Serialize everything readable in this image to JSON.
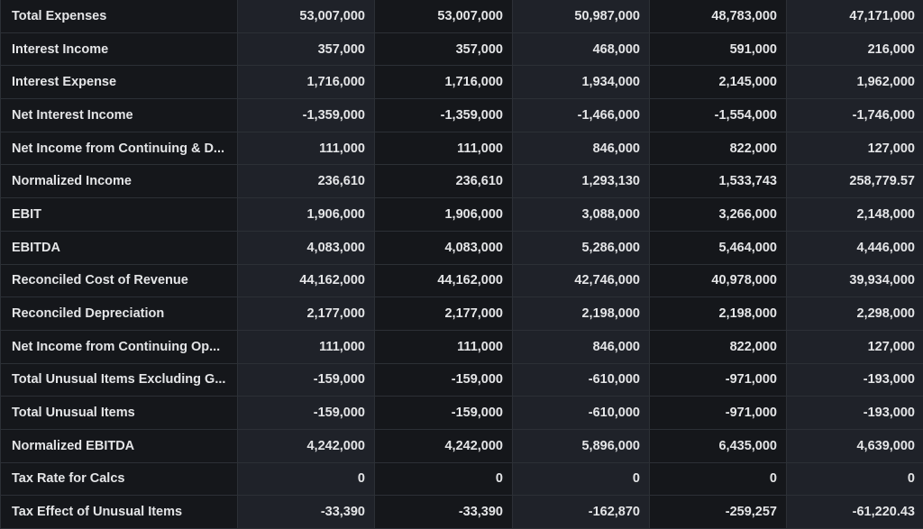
{
  "rows": [
    {
      "label": "Total Expenses",
      "values": [
        "53,007,000",
        "53,007,000",
        "50,987,000",
        "48,783,000",
        "47,171,000"
      ]
    },
    {
      "label": "Interest Income",
      "values": [
        "357,000",
        "357,000",
        "468,000",
        "591,000",
        "216,000"
      ]
    },
    {
      "label": "Interest Expense",
      "values": [
        "1,716,000",
        "1,716,000",
        "1,934,000",
        "2,145,000",
        "1,962,000"
      ]
    },
    {
      "label": "Net Interest Income",
      "values": [
        "-1,359,000",
        "-1,359,000",
        "-1,466,000",
        "-1,554,000",
        "-1,746,000"
      ]
    },
    {
      "label": "Net Income from Continuing & D...",
      "values": [
        "111,000",
        "111,000",
        "846,000",
        "822,000",
        "127,000"
      ]
    },
    {
      "label": "Normalized Income",
      "values": [
        "236,610",
        "236,610",
        "1,293,130",
        "1,533,743",
        "258,779.57"
      ]
    },
    {
      "label": "EBIT",
      "values": [
        "1,906,000",
        "1,906,000",
        "3,088,000",
        "3,266,000",
        "2,148,000"
      ]
    },
    {
      "label": "EBITDA",
      "values": [
        "4,083,000",
        "4,083,000",
        "5,286,000",
        "5,464,000",
        "4,446,000"
      ]
    },
    {
      "label": "Reconciled Cost of Revenue",
      "values": [
        "44,162,000",
        "44,162,000",
        "42,746,000",
        "40,978,000",
        "39,934,000"
      ]
    },
    {
      "label": "Reconciled Depreciation",
      "values": [
        "2,177,000",
        "2,177,000",
        "2,198,000",
        "2,198,000",
        "2,298,000"
      ]
    },
    {
      "label": "Net Income from Continuing Op...",
      "values": [
        "111,000",
        "111,000",
        "846,000",
        "822,000",
        "127,000"
      ]
    },
    {
      "label": "Total Unusual Items Excluding G...",
      "values": [
        "-159,000",
        "-159,000",
        "-610,000",
        "-971,000",
        "-193,000"
      ]
    },
    {
      "label": "Total Unusual Items",
      "values": [
        "-159,000",
        "-159,000",
        "-610,000",
        "-971,000",
        "-193,000"
      ]
    },
    {
      "label": "Normalized EBITDA",
      "values": [
        "4,242,000",
        "4,242,000",
        "5,896,000",
        "6,435,000",
        "4,639,000"
      ]
    },
    {
      "label": "Tax Rate for Calcs",
      "values": [
        "0",
        "0",
        "0",
        "0",
        "0"
      ]
    },
    {
      "label": "Tax Effect of Unusual Items",
      "values": [
        "-33,390",
        "-33,390",
        "-162,870",
        "-259,257",
        "-61,220.43"
      ]
    }
  ]
}
